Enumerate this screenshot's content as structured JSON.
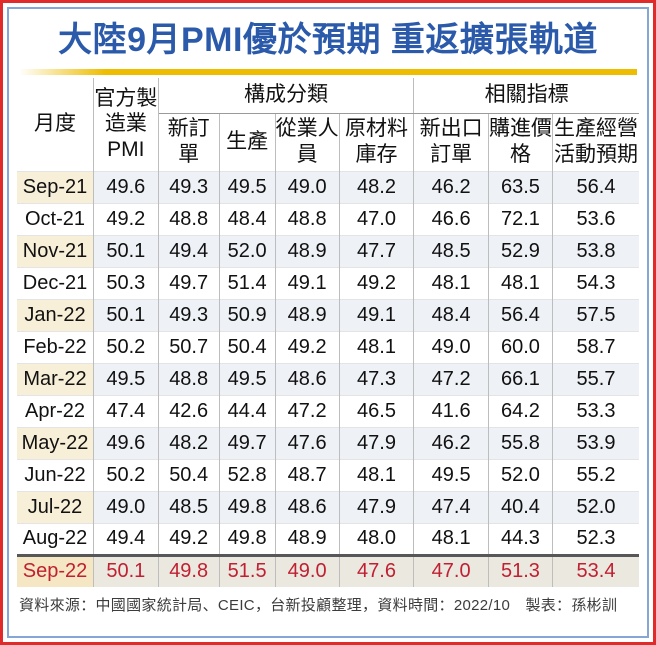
{
  "title": "大陸9月PMI優於預期 重返擴張軌道",
  "colors": {
    "title_blue": "#2b5aab",
    "accent_gold": "#eebd00",
    "frame_red": "#e12a2a",
    "frame_blue": "#86a7d3",
    "highlight_text_red": "#c02032",
    "row_label_beige": "#f8efd8",
    "row_data_gray": "#eef1f5",
    "highlight_label_beige": "#f6e7c4",
    "highlight_data_gray": "#ebe8e0"
  },
  "chart_data": {
    "type": "table",
    "title": "大陸9月PMI優於預期 重返擴張軌道",
    "headers": {
      "month": "月度",
      "pmi": "官方製造業PMI",
      "group1": "構成分類",
      "new_orders": "新訂單",
      "production": "生產",
      "employment": "從業人員",
      "raw_material_inventory": "原材料庫存",
      "group2": "相關指標",
      "new_export_orders": "新出口訂單",
      "purchase_price": "購進價格",
      "business_expectation": "生產經營活動預期"
    },
    "column_groups": [
      {
        "label": "構成分類",
        "columns": [
          "新訂單",
          "生產",
          "從業人員",
          "原材料庫存"
        ]
      },
      {
        "label": "相關指標",
        "columns": [
          "新出口訂單",
          "購進價格",
          "生產經營活動預期"
        ]
      }
    ],
    "rows": [
      {
        "month": "Sep-21",
        "values": [
          "49.6",
          "49.3",
          "49.5",
          "49.0",
          "48.2",
          "46.2",
          "63.5",
          "56.4"
        ]
      },
      {
        "month": "Oct-21",
        "values": [
          "49.2",
          "48.8",
          "48.4",
          "48.8",
          "47.0",
          "46.6",
          "72.1",
          "53.6"
        ]
      },
      {
        "month": "Nov-21",
        "values": [
          "50.1",
          "49.4",
          "52.0",
          "48.9",
          "47.7",
          "48.5",
          "52.9",
          "53.8"
        ]
      },
      {
        "month": "Dec-21",
        "values": [
          "50.3",
          "49.7",
          "51.4",
          "49.1",
          "49.2",
          "48.1",
          "48.1",
          "54.3"
        ]
      },
      {
        "month": "Jan-22",
        "values": [
          "50.1",
          "49.3",
          "50.9",
          "48.9",
          "49.1",
          "48.4",
          "56.4",
          "57.5"
        ]
      },
      {
        "month": "Feb-22",
        "values": [
          "50.2",
          "50.7",
          "50.4",
          "49.2",
          "48.1",
          "49.0",
          "60.0",
          "58.7"
        ]
      },
      {
        "month": "Mar-22",
        "values": [
          "49.5",
          "48.8",
          "49.5",
          "48.6",
          "47.3",
          "47.2",
          "66.1",
          "55.7"
        ]
      },
      {
        "month": "Apr-22",
        "values": [
          "47.4",
          "42.6",
          "44.4",
          "47.2",
          "46.5",
          "41.6",
          "64.2",
          "53.3"
        ]
      },
      {
        "month": "May-22",
        "values": [
          "49.6",
          "48.2",
          "49.7",
          "47.6",
          "47.9",
          "46.2",
          "55.8",
          "53.9"
        ]
      },
      {
        "month": "Jun-22",
        "values": [
          "50.2",
          "50.4",
          "52.8",
          "48.7",
          "48.1",
          "49.5",
          "52.0",
          "55.2"
        ]
      },
      {
        "month": "Jul-22",
        "values": [
          "49.0",
          "48.5",
          "49.8",
          "48.6",
          "47.9",
          "47.4",
          "40.4",
          "52.0"
        ]
      },
      {
        "month": "Aug-22",
        "values": [
          "49.4",
          "49.2",
          "49.8",
          "48.9",
          "48.0",
          "48.1",
          "44.3",
          "52.3"
        ]
      },
      {
        "month": "Sep-22",
        "values": [
          "50.1",
          "49.8",
          "51.5",
          "49.0",
          "47.6",
          "47.0",
          "51.3",
          "53.4"
        ],
        "highlight": true
      }
    ],
    "highlight_row": "Sep-22"
  },
  "footer": {
    "source": "資料來源：中國國家統計局、CEIC，台新投顧整理，資料時間：2022/10　製表：孫彬訓"
  }
}
